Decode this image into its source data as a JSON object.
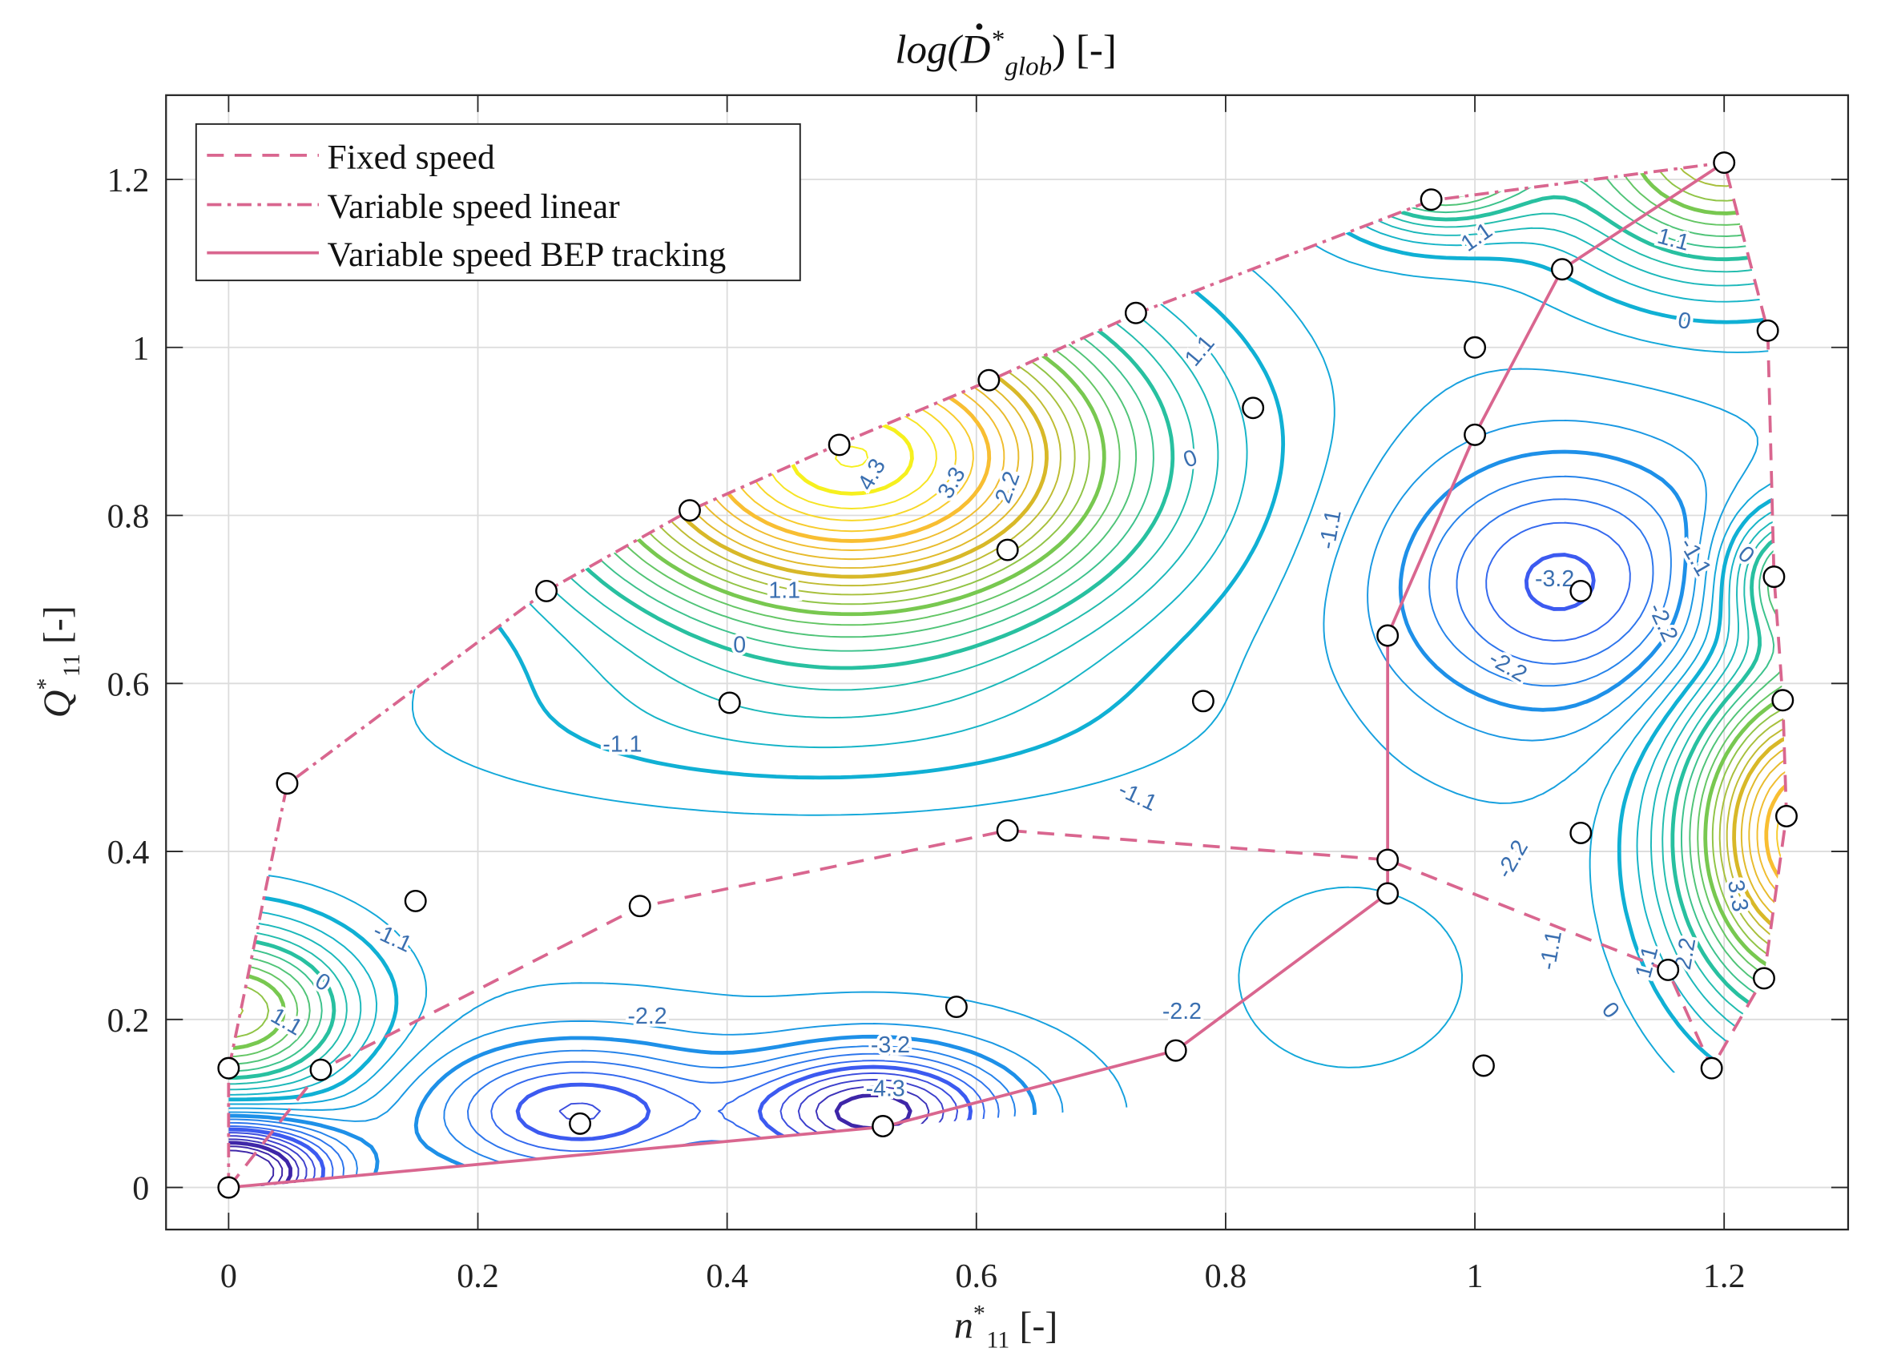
{
  "chart_data": {
    "type": "contour",
    "title": {
      "prefix": "log(",
      "symbol": "D",
      "sup": "*",
      "sub": "glob",
      "suffix": ") [-]"
    },
    "xlabel": {
      "symbol": "n",
      "sup": "*",
      "sub": "11",
      "unit": "[-]"
    },
    "ylabel": {
      "symbol": "Q",
      "sup": "*",
      "sub": "11",
      "unit": "[-]"
    },
    "xlim": [
      -0.05,
      1.3
    ],
    "ylim": [
      -0.05,
      1.3
    ],
    "x_ticks": [
      "0",
      "0.2",
      "0.4",
      "0.6",
      "0.8",
      "1",
      "1.2"
    ],
    "x_tick_values": [
      0,
      0.2,
      0.4,
      0.6,
      0.8,
      1.0,
      1.2
    ],
    "y_ticks": [
      "0",
      "0.2",
      "0.4",
      "0.6",
      "0.8",
      "1",
      "1.2"
    ],
    "y_tick_values": [
      0,
      0.2,
      0.4,
      0.6,
      0.8,
      1.0,
      1.2
    ],
    "grid": true,
    "legend_position": "top-left",
    "contour_step": 0.275,
    "labeled_levels": [
      -4.3,
      -3.2,
      -2.2,
      -1.1,
      0,
      1.1,
      2.2,
      3.3,
      4.3
    ],
    "contour_labels": [
      {
        "text": "4.3",
        "x": 0.517,
        "y": 0.848,
        "rot": -60
      },
      {
        "text": "3.3",
        "x": 0.581,
        "y": 0.838,
        "rot": -60
      },
      {
        "text": "2.2",
        "x": 0.626,
        "y": 0.833,
        "rot": -70
      },
      {
        "text": "1.1",
        "x": 0.446,
        "y": 0.709,
        "rot": 0
      },
      {
        "text": "0",
        "x": 0.41,
        "y": 0.644,
        "rot": 0
      },
      {
        "text": "-1.1",
        "x": 0.316,
        "y": 0.526,
        "rot": 0
      },
      {
        "text": "-1.1",
        "x": 0.729,
        "y": 0.464,
        "rot": 25
      },
      {
        "text": "0",
        "x": 0.772,
        "y": 0.866,
        "rot": -20
      },
      {
        "text": "1.1",
        "x": 0.78,
        "y": 0.995,
        "rot": -50
      },
      {
        "text": "1.1",
        "x": 1.002,
        "y": 1.13,
        "rot": -35
      },
      {
        "text": "1.1",
        "x": 1.159,
        "y": 1.127,
        "rot": 15
      },
      {
        "text": "0",
        "x": 1.168,
        "y": 1.03,
        "rot": 10
      },
      {
        "text": "-1.1",
        "x": 0.885,
        "y": 0.783,
        "rot": -80
      },
      {
        "text": "-3.2",
        "x": 1.064,
        "y": 0.723,
        "rot": 0
      },
      {
        "text": "-2.2",
        "x": 1.15,
        "y": 0.672,
        "rot": 65
      },
      {
        "text": "-2.2",
        "x": 1.026,
        "y": 0.619,
        "rot": 30
      },
      {
        "text": "-1.1",
        "x": 1.176,
        "y": 0.75,
        "rot": 60
      },
      {
        "text": "0",
        "x": 1.217,
        "y": 0.752,
        "rot": 40
      },
      {
        "text": "-2.2",
        "x": 1.031,
        "y": 0.39,
        "rot": -60
      },
      {
        "text": "3.3",
        "x": 1.21,
        "y": 0.347,
        "rot": 80
      },
      {
        "text": "2.2",
        "x": 1.17,
        "y": 0.278,
        "rot": -80
      },
      {
        "text": "1.1",
        "x": 1.139,
        "y": 0.268,
        "rot": -75
      },
      {
        "text": "-1.1",
        "x": 1.062,
        "y": 0.282,
        "rot": -80
      },
      {
        "text": "0",
        "x": 1.108,
        "y": 0.21,
        "rot": 50
      },
      {
        "text": "-2.2",
        "x": 0.765,
        "y": 0.208,
        "rot": 0
      },
      {
        "text": "-2.2",
        "x": 0.336,
        "y": 0.202,
        "rot": 0
      },
      {
        "text": "-3.2",
        "x": 0.531,
        "y": 0.168,
        "rot": 0
      },
      {
        "text": "-4.3",
        "x": 0.527,
        "y": 0.116,
        "rot": 0
      },
      {
        "text": "-1.1",
        "x": 0.131,
        "y": 0.296,
        "rot": 25
      },
      {
        "text": "0",
        "x": 0.075,
        "y": 0.243,
        "rot": 30
      },
      {
        "text": "1.1",
        "x": 0.046,
        "y": 0.196,
        "rot": 30
      }
    ],
    "series": [
      {
        "name": "Fixed speed",
        "style": "dashed",
        "color": "#d9668f",
        "x": [
          0,
          0.074,
          0.33,
          0.625,
          0.93,
          1.155,
          1.19,
          1.232,
          1.25,
          1.247,
          1.24,
          1.235,
          1.2
        ],
        "y": [
          0,
          0.14,
          0.334,
          0.425,
          0.39,
          0.258,
          0.142,
          0.25,
          0.443,
          0.583,
          0.728,
          1.02,
          1.22
        ]
      },
      {
        "name": "Variable speed linear",
        "style": "dashdot",
        "color": "#d9668f",
        "x": [
          0,
          0,
          0.047,
          0.255,
          0.37,
          0.49,
          0.61,
          0.728,
          0.965,
          1.2
        ],
        "y": [
          0,
          0.14,
          0.48,
          0.71,
          0.806,
          0.885,
          0.96,
          1.04,
          1.175,
          1.22
        ]
      },
      {
        "name": "Variable speed BEP tracking",
        "style": "solid",
        "color": "#d9668f",
        "x": [
          0,
          0.525,
          0.76,
          0.93,
          0.93,
          0.93,
          1.0,
          1.07,
          1.2
        ],
        "y": [
          0,
          0.072,
          0.163,
          0.35,
          0.39,
          0.657,
          0.896,
          1.093,
          1.22
        ]
      }
    ],
    "markers": {
      "x": [
        0,
        0,
        0.074,
        0.047,
        0.15,
        0.255,
        0.33,
        0.37,
        0.402,
        0.49,
        0.282,
        0.525,
        0.61,
        0.625,
        0.625,
        0.584,
        0.728,
        0.782,
        0.76,
        0.822,
        0.93,
        0.93,
        0.93,
        0.965,
        1.0,
        1.0,
        1.007,
        1.07,
        1.085,
        1.085,
        1.2,
        1.235,
        1.24,
        1.247,
        1.25,
        1.232,
        1.155,
        1.19
      ],
      "y": [
        0,
        0.142,
        0.14,
        0.481,
        0.341,
        0.71,
        0.335,
        0.806,
        0.577,
        0.884,
        0.076,
        0.073,
        0.961,
        0.425,
        0.759,
        0.215,
        1.041,
        0.579,
        0.163,
        0.928,
        0.39,
        0.35,
        0.657,
        1.176,
        1.0,
        0.896,
        0.145,
        1.093,
        0.71,
        0.422,
        1.22,
        1.02,
        0.727,
        0.58,
        0.442,
        0.249,
        0.259,
        0.142
      ]
    }
  }
}
